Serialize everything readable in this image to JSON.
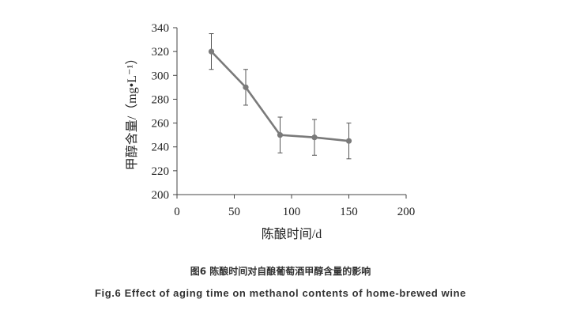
{
  "chart_data": {
    "type": "line",
    "x": [
      30,
      60,
      90,
      120,
      150
    ],
    "series": [
      {
        "values": [
          320,
          290,
          250,
          248,
          245
        ],
        "errors": [
          15,
          15,
          15,
          15,
          15
        ],
        "color": "#7a7a7a"
      }
    ],
    "xlabel": "陈酿时间/d",
    "ylabel": "甲醇含量/（mg•L⁻¹）",
    "xlim": [
      0,
      200
    ],
    "ylim": [
      200,
      340
    ],
    "xticks": [
      "0",
      "50",
      "100",
      "150",
      "200"
    ],
    "yticks": [
      "200",
      "220",
      "240",
      "260",
      "280",
      "300",
      "320",
      "340"
    ],
    "grid": false,
    "legend": "none"
  },
  "caption": {
    "cn": "图6 陈酿时间对自酿葡萄酒甲醇含量的影响",
    "en": "Fig.6 Effect of aging time on methanol contents of home-brewed wine"
  }
}
